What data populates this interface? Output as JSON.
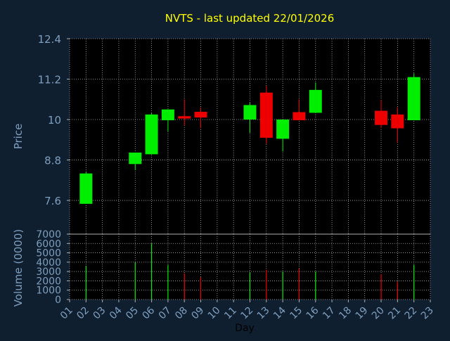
{
  "colors": {
    "background": "#0f1f2f",
    "plot_background": "#000000",
    "up": "#00ee00",
    "down": "#ee0000",
    "grid": "#b0b0b0",
    "axis_text": "#7f9fbf",
    "title": "#ffff00",
    "xlabel": "#000000"
  },
  "chart_data": [
    {
      "type": "candlestick",
      "title": "NVTS - last updated 22/01/2026",
      "ylabel": "Price",
      "ylim": [
        6.6,
        12.4
      ],
      "yticks": [
        7.6,
        8.8,
        10,
        11.2,
        12.4
      ],
      "ytick_labels": [
        "7.6",
        "8.8",
        "10",
        "11.2",
        "12.4"
      ],
      "xlim": [
        1,
        23
      ],
      "grid": true,
      "candles": [
        {
          "day": 2,
          "open": 7.5,
          "close": 8.4,
          "high": 8.45,
          "low": 7.5
        },
        {
          "day": 5,
          "open": 8.68,
          "close": 9.02,
          "high": 9.02,
          "low": 8.5
        },
        {
          "day": 6,
          "open": 8.97,
          "close": 10.15,
          "high": 10.2,
          "low": 8.97
        },
        {
          "day": 7,
          "open": 9.98,
          "close": 10.3,
          "high": 10.3,
          "low": 9.65
        },
        {
          "day": 8,
          "open": 10.1,
          "close": 10.03,
          "high": 10.6,
          "low": 9.82
        },
        {
          "day": 9,
          "open": 10.23,
          "close": 10.06,
          "high": 10.36,
          "low": 9.74
        },
        {
          "day": 12,
          "open": 10.0,
          "close": 10.43,
          "high": 10.5,
          "low": 9.6
        },
        {
          "day": 13,
          "open": 10.8,
          "close": 9.46,
          "high": 11.0,
          "low": 9.28
        },
        {
          "day": 14,
          "open": 9.43,
          "close": 10.0,
          "high": 10.0,
          "low": 9.05
        },
        {
          "day": 15,
          "open": 10.22,
          "close": 9.98,
          "high": 10.6,
          "low": 9.98
        },
        {
          "day": 16,
          "open": 10.2,
          "close": 10.88,
          "high": 11.1,
          "low": 10.2
        },
        {
          "day": 20,
          "open": 10.26,
          "close": 9.84,
          "high": 10.58,
          "low": 9.74
        },
        {
          "day": 21,
          "open": 10.15,
          "close": 9.74,
          "high": 10.36,
          "low": 9.32
        },
        {
          "day": 22,
          "open": 9.98,
          "close": 11.26,
          "high": 11.37,
          "low": 9.98
        }
      ]
    },
    {
      "type": "bar",
      "ylabel": "Volume (0000)",
      "xlabel": "Day",
      "ylim": [
        0,
        7000
      ],
      "yticks": [
        0,
        1000,
        2000,
        3000,
        4000,
        5000,
        6000,
        7000
      ],
      "ytick_labels": [
        "0",
        "1000",
        "2000",
        "3000",
        "4000",
        "5000",
        "6000",
        "7000"
      ],
      "xlim": [
        1,
        23
      ],
      "xtick_labels": [
        "01",
        "02",
        "03",
        "04",
        "05",
        "06",
        "07",
        "08",
        "09",
        "10",
        "11",
        "12",
        "13",
        "14",
        "15",
        "16",
        "17",
        "18",
        "19",
        "20",
        "21",
        "22",
        "23"
      ],
      "grid": true,
      "bars": [
        {
          "day": 2,
          "value": 3600,
          "direction": "up"
        },
        {
          "day": 5,
          "value": 4000,
          "direction": "up"
        },
        {
          "day": 6,
          "value": 6000,
          "direction": "up"
        },
        {
          "day": 7,
          "value": 3700,
          "direction": "up"
        },
        {
          "day": 8,
          "value": 2800,
          "direction": "down"
        },
        {
          "day": 9,
          "value": 2400,
          "direction": "down"
        },
        {
          "day": 12,
          "value": 2900,
          "direction": "up"
        },
        {
          "day": 13,
          "value": 3200,
          "direction": "down"
        },
        {
          "day": 14,
          "value": 3000,
          "direction": "up"
        },
        {
          "day": 15,
          "value": 3300,
          "direction": "down"
        },
        {
          "day": 16,
          "value": 3000,
          "direction": "up"
        },
        {
          "day": 20,
          "value": 2700,
          "direction": "down"
        },
        {
          "day": 21,
          "value": 1900,
          "direction": "down"
        },
        {
          "day": 22,
          "value": 3700,
          "direction": "up"
        }
      ]
    }
  ]
}
